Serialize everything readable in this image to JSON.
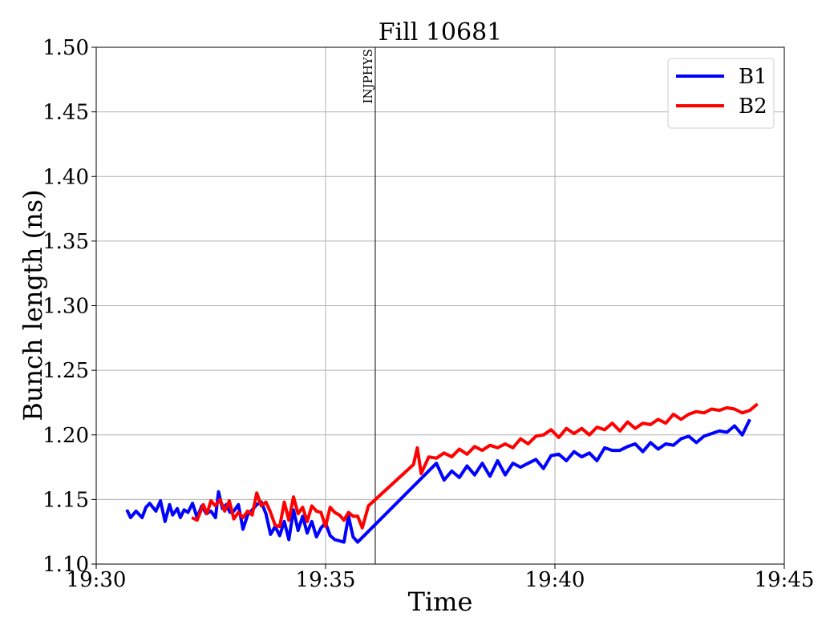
{
  "chart_data": {
    "type": "line",
    "title": "Fill 10681",
    "xlabel": "Time",
    "ylabel": "Bunch length (ns)",
    "x_unit": "time HH:MM",
    "xlim": [
      "19:30",
      "19:45"
    ],
    "ylim": [
      1.1,
      1.5
    ],
    "xticks": [
      "19:30",
      "19:35",
      "19:40",
      "19:45"
    ],
    "yticks": [
      "1.10",
      "1.15",
      "1.20",
      "1.25",
      "1.30",
      "1.35",
      "1.40",
      "1.45",
      "1.50"
    ],
    "grid": true,
    "legend_position": "top-right",
    "annotations": [
      {
        "x": "19:36:05",
        "label": "INJPHYS"
      }
    ],
    "series": [
      {
        "name": "B1",
        "color": "#0000ff",
        "x": [
          "19:30:40",
          "19:30:45",
          "19:30:52",
          "19:31:00",
          "19:31:05",
          "19:31:10",
          "19:31:18",
          "19:31:24",
          "19:31:30",
          "19:31:36",
          "19:31:40",
          "19:31:46",
          "19:31:50",
          "19:31:55",
          "19:32:00",
          "19:32:06",
          "19:32:12",
          "19:32:18",
          "19:32:24",
          "19:32:30",
          "19:32:36",
          "19:32:40",
          "19:32:45",
          "19:32:50",
          "19:32:55",
          "19:33:00",
          "19:33:06",
          "19:33:12",
          "19:33:18",
          "19:33:24",
          "19:33:30",
          "19:33:36",
          "19:33:42",
          "19:33:48",
          "19:33:54",
          "19:34:00",
          "19:34:06",
          "19:34:12",
          "19:34:18",
          "19:34:24",
          "19:34:30",
          "19:34:36",
          "19:34:42",
          "19:34:48",
          "19:34:54",
          "19:35:00",
          "19:35:06",
          "19:35:12",
          "19:35:18",
          "19:35:24",
          "19:35:30",
          "19:35:36",
          "19:35:42",
          "19:37:25",
          "19:37:35",
          "19:37:45",
          "19:37:55",
          "19:38:05",
          "19:38:15",
          "19:38:25",
          "19:38:35",
          "19:38:45",
          "19:38:55",
          "19:39:05",
          "19:39:15",
          "19:39:25",
          "19:39:35",
          "19:39:45",
          "19:39:55",
          "19:40:05",
          "19:40:15",
          "19:40:25",
          "19:40:35",
          "19:40:45",
          "19:40:55",
          "19:41:05",
          "19:41:15",
          "19:41:25",
          "19:41:35",
          "19:41:45",
          "19:41:55",
          "19:42:05",
          "19:42:15",
          "19:42:25",
          "19:42:35",
          "19:42:45",
          "19:42:55",
          "19:43:05",
          "19:43:15",
          "19:43:25",
          "19:43:35",
          "19:43:45",
          "19:43:55",
          "19:44:05",
          "19:44:10",
          "19:44:15"
        ],
        "y": [
          1.142,
          1.136,
          1.141,
          1.136,
          1.144,
          1.147,
          1.141,
          1.149,
          1.133,
          1.146,
          1.138,
          1.143,
          1.136,
          1.142,
          1.14,
          1.147,
          1.136,
          1.145,
          1.139,
          1.141,
          1.136,
          1.156,
          1.143,
          1.146,
          1.14,
          1.141,
          1.146,
          1.127,
          1.138,
          1.142,
          1.146,
          1.148,
          1.139,
          1.123,
          1.129,
          1.122,
          1.133,
          1.119,
          1.142,
          1.126,
          1.137,
          1.124,
          1.133,
          1.121,
          1.128,
          1.132,
          1.122,
          1.119,
          1.118,
          1.117,
          1.137,
          1.121,
          1.117,
          1.178,
          1.165,
          1.172,
          1.167,
          1.176,
          1.169,
          1.178,
          1.168,
          1.18,
          1.169,
          1.178,
          1.175,
          1.178,
          1.181,
          1.174,
          1.184,
          1.185,
          1.18,
          1.187,
          1.183,
          1.186,
          1.18,
          1.19,
          1.188,
          1.188,
          1.191,
          1.193,
          1.187,
          1.194,
          1.189,
          1.193,
          1.192,
          1.197,
          1.199,
          1.194,
          1.199,
          1.201,
          1.203,
          1.202,
          1.207,
          1.2,
          1.206,
          1.212
        ]
      },
      {
        "name": "B2",
        "color": "#ff0000",
        "x": [
          "19:32:05",
          "19:32:12",
          "19:32:20",
          "19:32:25",
          "19:32:30",
          "19:32:36",
          "19:32:42",
          "19:32:48",
          "19:32:54",
          "19:33:00",
          "19:33:06",
          "19:33:12",
          "19:33:18",
          "19:33:24",
          "19:33:30",
          "19:33:36",
          "19:33:42",
          "19:33:48",
          "19:33:54",
          "19:34:00",
          "19:34:06",
          "19:34:12",
          "19:34:18",
          "19:34:24",
          "19:34:30",
          "19:34:36",
          "19:34:42",
          "19:34:48",
          "19:34:54",
          "19:35:00",
          "19:35:06",
          "19:35:12",
          "19:35:18",
          "19:35:24",
          "19:35:30",
          "19:35:36",
          "19:35:42",
          "19:35:48",
          "19:35:56",
          "19:36:55",
          "19:37:00",
          "19:37:05",
          "19:37:15",
          "19:37:25",
          "19:37:35",
          "19:37:45",
          "19:37:55",
          "19:38:05",
          "19:38:15",
          "19:38:25",
          "19:38:35",
          "19:38:45",
          "19:38:55",
          "19:39:05",
          "19:39:15",
          "19:39:25",
          "19:39:35",
          "19:39:45",
          "19:39:55",
          "19:40:05",
          "19:40:15",
          "19:40:25",
          "19:40:35",
          "19:40:45",
          "19:40:55",
          "19:41:05",
          "19:41:15",
          "19:41:25",
          "19:41:35",
          "19:41:45",
          "19:41:55",
          "19:42:05",
          "19:42:15",
          "19:42:25",
          "19:42:35",
          "19:42:45",
          "19:42:55",
          "19:43:05",
          "19:43:15",
          "19:43:25",
          "19:43:35",
          "19:43:45",
          "19:43:55",
          "19:44:05",
          "19:44:15",
          "19:44:25"
        ],
        "y": [
          1.136,
          1.134,
          1.146,
          1.139,
          1.149,
          1.145,
          1.15,
          1.141,
          1.149,
          1.135,
          1.14,
          1.136,
          1.141,
          1.138,
          1.155,
          1.145,
          1.148,
          1.14,
          1.13,
          1.129,
          1.148,
          1.134,
          1.152,
          1.139,
          1.144,
          1.133,
          1.145,
          1.141,
          1.14,
          1.129,
          1.144,
          1.14,
          1.138,
          1.134,
          1.14,
          1.137,
          1.137,
          1.128,
          1.145,
          1.177,
          1.19,
          1.17,
          1.183,
          1.182,
          1.186,
          1.183,
          1.189,
          1.185,
          1.191,
          1.188,
          1.192,
          1.19,
          1.193,
          1.19,
          1.197,
          1.193,
          1.199,
          1.2,
          1.204,
          1.198,
          1.205,
          1.201,
          1.205,
          1.2,
          1.206,
          1.204,
          1.209,
          1.203,
          1.21,
          1.205,
          1.209,
          1.208,
          1.212,
          1.209,
          1.216,
          1.212,
          1.216,
          1.218,
          1.217,
          1.22,
          1.219,
          1.221,
          1.22,
          1.217,
          1.219,
          1.224
        ]
      }
    ]
  }
}
